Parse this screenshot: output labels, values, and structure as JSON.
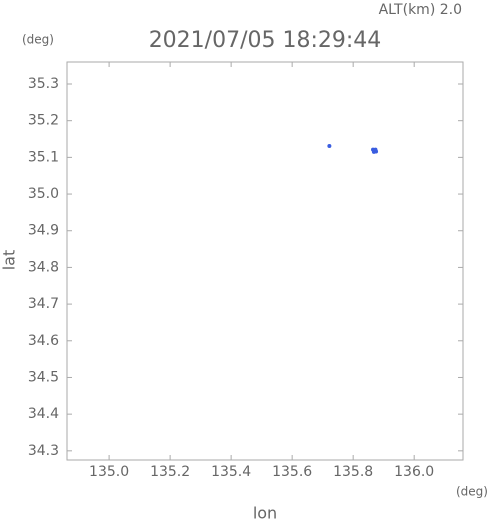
{
  "chart_data": {
    "type": "scatter",
    "title": "2021/07/05 18:29:44",
    "annotation": "ALT(km) 2.0",
    "x_unit": "(deg)",
    "y_unit": "(deg)",
    "x_label": "lon",
    "y_label": "lat",
    "xlim": [
      134.862,
      136.16
    ],
    "ylim": [
      34.275,
      35.36
    ],
    "xticks": [
      {
        "value": 135.0,
        "label": "135.0"
      },
      135.2,
      135.4,
      135.6,
      135.8,
      {
        "value": 136.0,
        "label": "136.0"
      }
    ],
    "yticks": [
      34.3,
      34.4,
      34.5,
      34.6,
      34.7,
      34.8,
      34.9,
      {
        "value": 35.0,
        "label": "35.0"
      },
      35.1,
      35.2,
      35.3
    ],
    "series": [
      {
        "color": "#3a5de0",
        "x": [
          135.722,
          135.865,
          135.87,
          135.875,
          135.868,
          135.873
        ],
        "values": [
          35.131,
          35.121,
          35.118,
          35.116,
          35.115,
          35.121
        ]
      }
    ]
  }
}
